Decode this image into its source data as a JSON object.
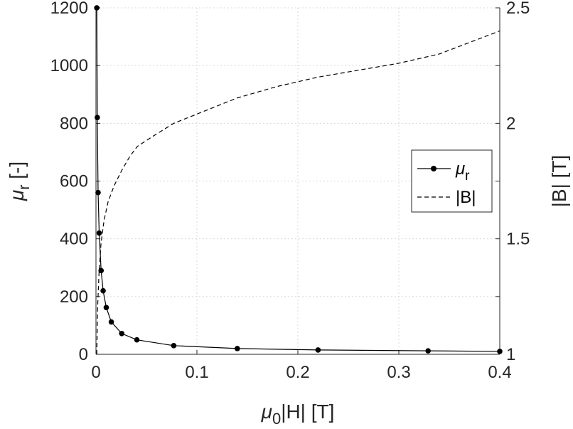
{
  "chart_data": {
    "type": "line",
    "xlabel": "μ0|H| [T]",
    "xlabel_parts": {
      "mu": "μ",
      "sub": "0",
      "rest": "|H| [T]"
    },
    "ylabel_left": "μr [-]",
    "ylabel_left_parts": {
      "mu": "μ",
      "sub": "r",
      "rest": " [-]"
    },
    "ylabel_right": "|B| [T]",
    "xlim": [
      0,
      0.4
    ],
    "ylim_left": [
      0,
      1200
    ],
    "ylim_right": [
      1,
      2.5
    ],
    "x_ticks": [
      0,
      0.1,
      0.2,
      0.3,
      0.4
    ],
    "x_tick_labels": [
      "0",
      "0.1",
      "0.2",
      "0.3",
      "0.4"
    ],
    "y_left_ticks": [
      0,
      200,
      400,
      600,
      800,
      1000,
      1200
    ],
    "y_left_tick_labels": [
      "0",
      "200",
      "400",
      "600",
      "800",
      "1000",
      "1200"
    ],
    "y_right_ticks": [
      1,
      1.5,
      2,
      2.5
    ],
    "y_right_tick_labels": [
      "1",
      "1.5",
      "2",
      "2.5"
    ],
    "grid": true,
    "legend_position": "right",
    "series": [
      {
        "name": "μr",
        "legend_parts": {
          "mu": "μ",
          "sub": "r"
        },
        "axis": "left",
        "style": "solid-marker",
        "color": "#000000",
        "x": [
          0.0008,
          0.0013,
          0.0021,
          0.0032,
          0.0051,
          0.0071,
          0.0102,
          0.0152,
          0.0255,
          0.0405,
          0.077,
          0.14,
          0.22,
          0.329,
          0.4
        ],
        "y": [
          1200,
          820,
          560,
          420,
          290,
          220,
          162,
          112,
          72,
          50,
          30,
          20,
          15,
          12,
          10
        ]
      },
      {
        "name": "|B|",
        "axis": "right",
        "style": "dashed",
        "color": "#000000",
        "x": [
          0.0008,
          0.0016,
          0.003,
          0.005,
          0.008,
          0.012,
          0.018,
          0.026,
          0.034,
          0.041,
          0.055,
          0.077,
          0.1,
          0.14,
          0.18,
          0.22,
          0.26,
          0.3,
          0.34,
          0.37,
          0.4
        ],
        "y": [
          1.0,
          1.2,
          1.35,
          1.48,
          1.58,
          1.66,
          1.73,
          1.8,
          1.86,
          1.9,
          1.94,
          2.0,
          2.04,
          2.11,
          2.16,
          2.2,
          2.23,
          2.26,
          2.3,
          2.35,
          2.4
        ]
      }
    ]
  }
}
